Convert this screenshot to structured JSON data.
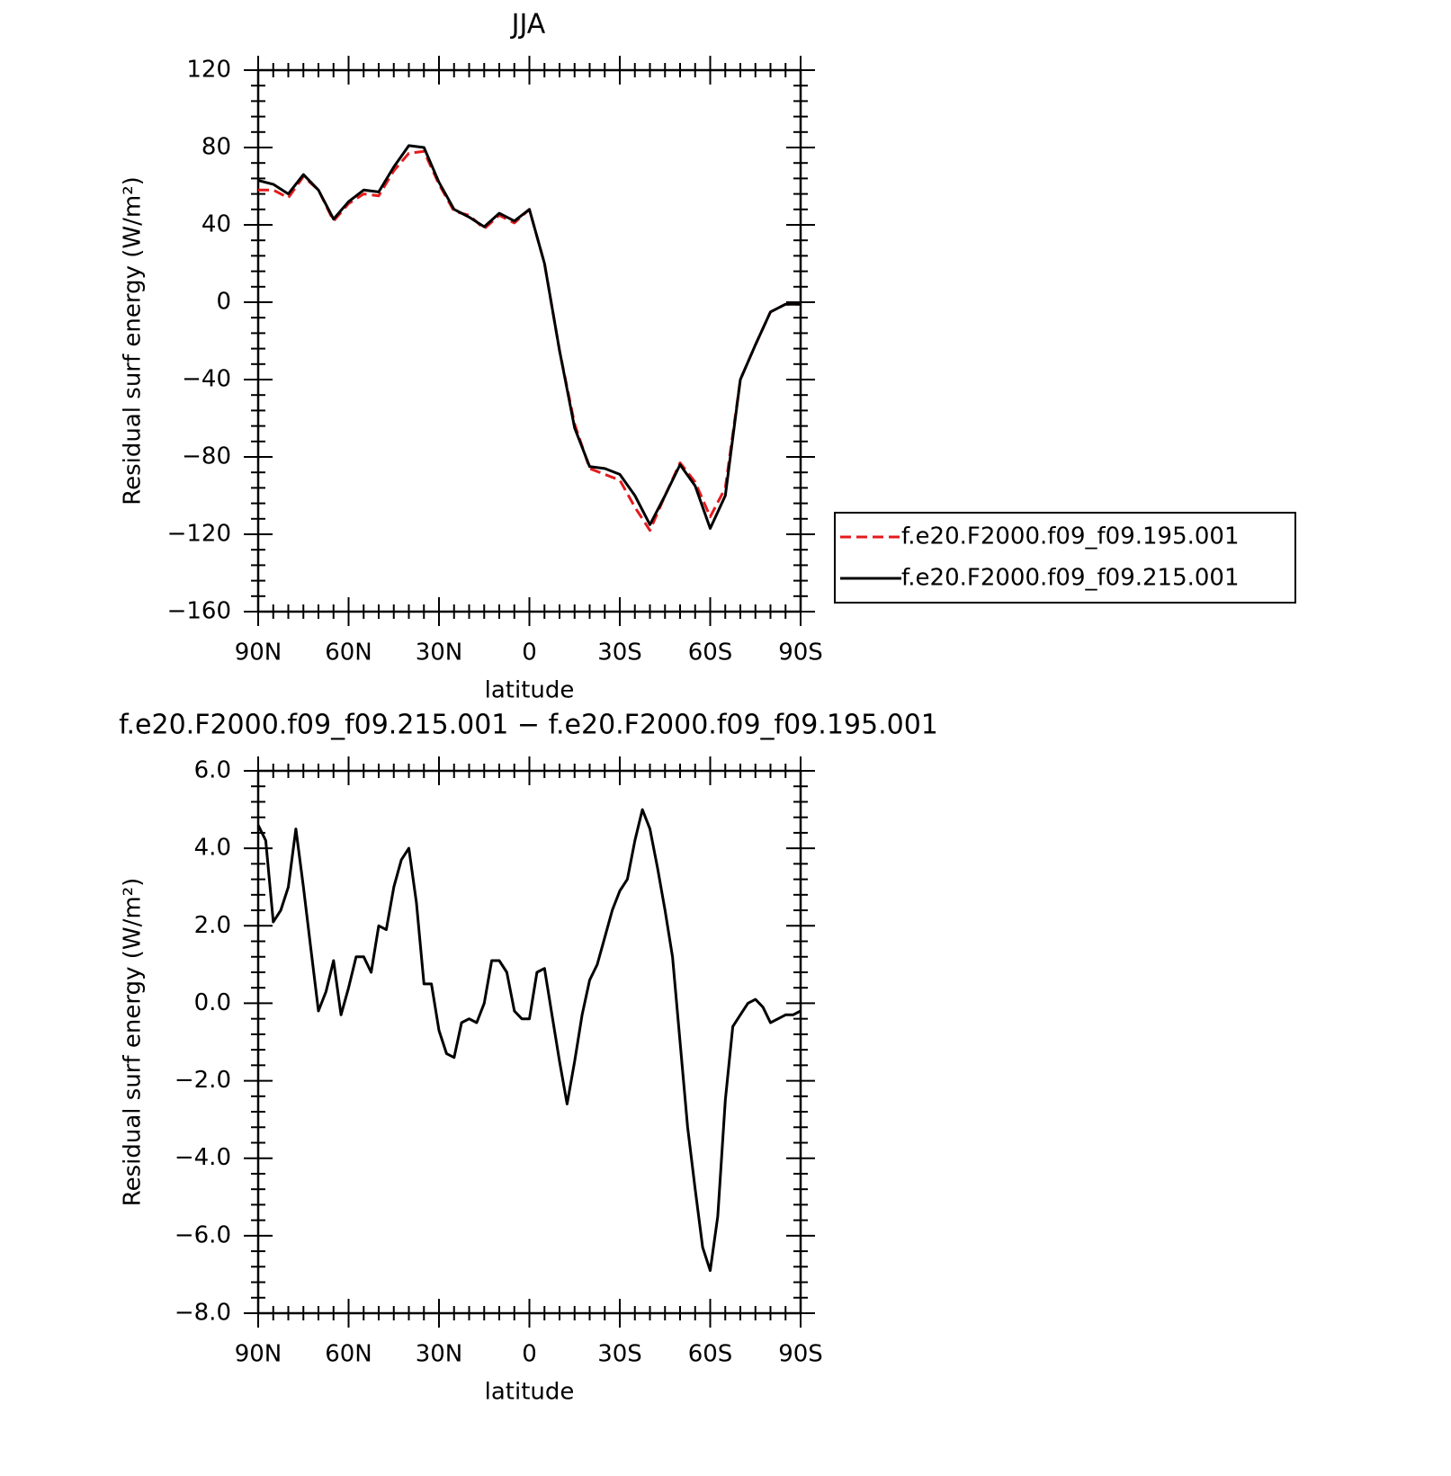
{
  "chart_data": [
    {
      "type": "line",
      "title": "JJA",
      "xlabel": "latitude",
      "ylabel": "Residual surf energy (W/m²)",
      "x": [
        90,
        85,
        80,
        75,
        70,
        65,
        60,
        55,
        50,
        45,
        40,
        35,
        30,
        25,
        20,
        15,
        10,
        5,
        0,
        -5,
        -10,
        -15,
        -20,
        -25,
        -30,
        -35,
        -40,
        -45,
        -50,
        -55,
        -60,
        -65,
        -70,
        -75,
        -80,
        -85,
        -90
      ],
      "series": [
        {
          "name": "f.e20.F2000.f09_f09.195.001",
          "color": "#e41a1c",
          "dash": "dashed",
          "values": [
            58,
            58,
            54,
            65,
            58,
            42,
            51,
            56,
            55,
            68,
            77,
            78,
            61,
            47,
            45,
            38,
            45,
            41,
            48,
            20,
            -25,
            -63,
            -86,
            -89,
            -92,
            -106,
            -118,
            -100,
            -83,
            -93,
            -111,
            -96,
            -40,
            -22,
            -5,
            -1,
            -1
          ]
        },
        {
          "name": "f.e20.F2000.f09_f09.215.001",
          "color": "#000000",
          "dash": "solid",
          "values": [
            63,
            61,
            56,
            66,
            58,
            43,
            52,
            58,
            57,
            70,
            81,
            80,
            62,
            48,
            44,
            39,
            46,
            42,
            48,
            20,
            -25,
            -65,
            -85,
            -86,
            -89,
            -100,
            -115,
            -100,
            -84,
            -95,
            -117,
            -100,
            -40,
            -22,
            -5,
            -1,
            -1
          ]
        }
      ],
      "xlim": [
        90,
        -90
      ],
      "xticks": [
        {
          "value": 90,
          "label": "90N"
        },
        {
          "value": 60,
          "label": "60N"
        },
        {
          "value": 30,
          "label": "30N"
        },
        0,
        {
          "value": -30,
          "label": "30S"
        },
        {
          "value": -60,
          "label": "60S"
        },
        {
          "value": -90,
          "label": "90S"
        }
      ],
      "ylim": [
        -160,
        120
      ],
      "yticks": [
        {
          "value": -160,
          "label": "−160"
        },
        {
          "value": -120,
          "label": "−120"
        },
        {
          "value": -80,
          "label": "−80"
        },
        {
          "value": -40,
          "label": "−40"
        },
        0,
        40,
        80,
        120
      ],
      "legend": "right"
    },
    {
      "type": "line",
      "title": "f.e20.F2000.f09_f09.215.001 − f.e20.F2000.f09_f09.195.001",
      "xlabel": "latitude",
      "ylabel": "Residual surf energy (W/m²)",
      "x": [
        90,
        87.5,
        85,
        82.5,
        80,
        77.5,
        75,
        72.5,
        70,
        67.5,
        65,
        62.5,
        60,
        57.5,
        55,
        52.5,
        50,
        47.5,
        45,
        42.5,
        40,
        37.5,
        35,
        32.5,
        30,
        27.5,
        25,
        22.5,
        20,
        17.5,
        15,
        12.5,
        10,
        7.5,
        5,
        2.5,
        0,
        -2.5,
        -5,
        -7.5,
        -10,
        -12.5,
        -15,
        -17.5,
        -20,
        -22.5,
        -25,
        -27.5,
        -30,
        -32.5,
        -35,
        -37.5,
        -40,
        -42.5,
        -45,
        -47.5,
        -50,
        -52.5,
        -55,
        -57.5,
        -60,
        -62.5,
        -65,
        -67.5,
        -70,
        -72.5,
        -75,
        -77.5,
        -80,
        -82.5,
        -85,
        -87.5,
        -90
      ],
      "series": [
        {
          "color": "#000000",
          "dash": "solid",
          "values": [
            4.6,
            4.2,
            2.1,
            2.4,
            3.0,
            4.5,
            3.0,
            1.4,
            -0.2,
            0.3,
            1.1,
            -0.3,
            0.4,
            1.2,
            1.2,
            0.8,
            2.0,
            1.9,
            3.0,
            3.7,
            4.0,
            2.6,
            0.5,
            0.5,
            -0.7,
            -1.3,
            -1.4,
            -0.5,
            -0.4,
            -0.5,
            0.0,
            1.1,
            1.1,
            0.8,
            -0.2,
            -0.4,
            -0.4,
            0.8,
            0.9,
            -0.3,
            -1.5,
            -2.6,
            -1.5,
            -0.3,
            0.6,
            1.0,
            1.7,
            2.4,
            2.9,
            3.2,
            4.2,
            5.0,
            4.5,
            3.5,
            2.4,
            1.2,
            -1.0,
            -3.2,
            -4.8,
            -6.3,
            -6.9,
            -5.5,
            -2.5,
            -0.6,
            -0.3,
            0.0,
            0.1,
            -0.1,
            -0.5,
            -0.4,
            -0.3,
            -0.3,
            -0.2
          ]
        }
      ],
      "xlim": [
        90,
        -90
      ],
      "xticks": [
        {
          "value": 90,
          "label": "90N"
        },
        {
          "value": 60,
          "label": "60N"
        },
        {
          "value": 30,
          "label": "30N"
        },
        0,
        {
          "value": -30,
          "label": "30S"
        },
        {
          "value": -60,
          "label": "60S"
        },
        {
          "value": -90,
          "label": "90S"
        }
      ],
      "ylim": [
        -8,
        6
      ],
      "yticks": [
        {
          "value": -8,
          "label": "−8.0"
        },
        {
          "value": -6,
          "label": "−6.0"
        },
        {
          "value": -4,
          "label": "−4.0"
        },
        {
          "value": -2,
          "label": "−2.0"
        },
        {
          "value": 0,
          "label": "0.0"
        },
        {
          "value": 2,
          "label": "2.0"
        },
        {
          "value": 4,
          "label": "4.0"
        },
        {
          "value": 6,
          "label": "6.0"
        }
      ]
    }
  ]
}
